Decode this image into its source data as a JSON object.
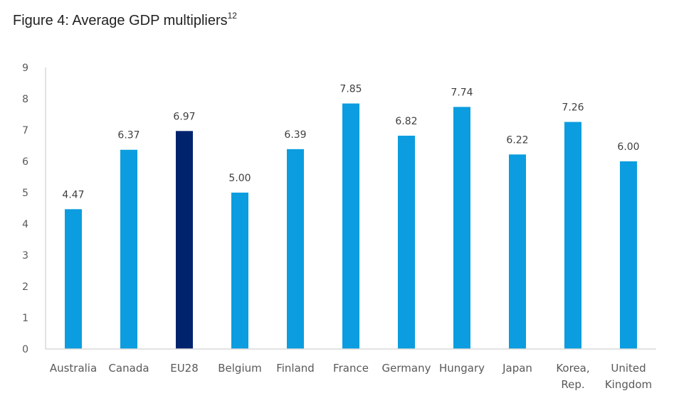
{
  "figure": {
    "title": "Figure 4: Average GDP multipliers",
    "title_sup": "12"
  },
  "chart_data": {
    "type": "bar",
    "title": "Figure 4: Average GDP multipliers",
    "xlabel": "",
    "ylabel": "",
    "categories": [
      "Australia",
      "Canada",
      "EU28",
      "Belgium",
      "Finland",
      "France",
      "Germany",
      "Hungary",
      "Japan",
      "Korea, Rep.",
      "United Kingdom"
    ],
    "category_lines": [
      [
        "Australia"
      ],
      [
        "Canada"
      ],
      [
        "EU28"
      ],
      [
        "Belgium"
      ],
      [
        "Finland"
      ],
      [
        "France"
      ],
      [
        "Germany"
      ],
      [
        "Hungary"
      ],
      [
        "Japan"
      ],
      [
        "Korea,",
        "Rep."
      ],
      [
        "United",
        "Kingdom"
      ]
    ],
    "values": [
      4.47,
      6.37,
      6.97,
      5.0,
      6.39,
      7.85,
      6.82,
      7.74,
      6.22,
      7.26,
      6.0
    ],
    "value_labels": [
      "4.47",
      "6.37",
      "6.97",
      "5.00",
      "6.39",
      "7.85",
      "6.82",
      "7.74",
      "6.22",
      "7.26",
      "6.00"
    ],
    "highlight_category": "EU28",
    "ylim": [
      0,
      9
    ],
    "yticks": [
      0,
      1,
      2,
      3,
      4,
      5,
      6,
      7,
      8,
      9
    ],
    "grid": false,
    "legend": "none",
    "colors": {
      "bar": "#0b9ddf",
      "highlight": "#00236e",
      "axis": "#d9d9d9"
    }
  }
}
